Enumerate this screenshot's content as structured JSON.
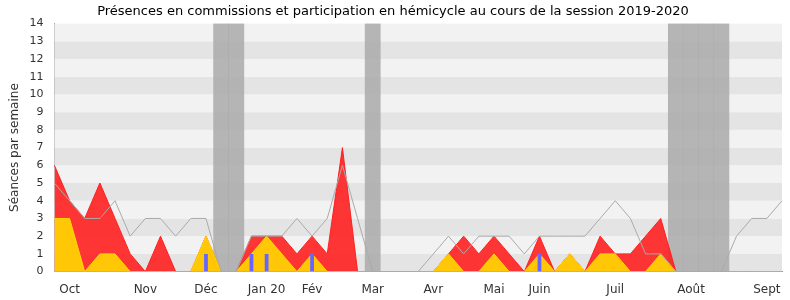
{
  "chart_data": {
    "type": "line",
    "title": "Présences en commissions et participation en hémicycle au cours de la session 2019-2020",
    "y_label": "Séances par semaine",
    "categories": [
      null,
      "Oct",
      null,
      null,
      null,
      null,
      "Nov",
      null,
      null,
      null,
      "Déc",
      null,
      null,
      null,
      "Jan 20",
      null,
      null,
      "Fév",
      null,
      null,
      null,
      "Mar",
      null,
      null,
      null,
      "Avr",
      null,
      null,
      null,
      "Mai",
      null,
      null,
      "Juin",
      null,
      null,
      null,
      null,
      "Juil",
      null,
      null,
      null,
      null,
      "Août",
      null,
      null,
      null,
      null,
      "Sept",
      null
    ],
    "series": [
      {
        "type": "bar",
        "color": "#aaaaaa",
        "values": [
          0,
          0,
          0,
          0,
          0,
          0,
          0,
          0,
          0,
          0,
          0,
          14,
          14,
          0,
          0,
          0,
          0,
          0,
          0,
          0,
          0,
          14,
          0,
          0,
          0,
          0,
          0,
          0,
          0,
          0,
          0,
          0,
          0,
          0,
          0,
          0,
          0,
          0,
          0,
          0,
          0,
          14,
          14,
          14,
          14,
          0,
          0,
          0,
          0
        ]
      },
      {
        "type": "area",
        "color": "#ff2020",
        "values": [
          6,
          4,
          3,
          5,
          3,
          1,
          0,
          2,
          0,
          0,
          2,
          0,
          0,
          2,
          2,
          2,
          1,
          2,
          1,
          7,
          0,
          0,
          0,
          0,
          0,
          0,
          1,
          2,
          1,
          2,
          1,
          0,
          2,
          0,
          1,
          0,
          2,
          1,
          1,
          2,
          3,
          0,
          0,
          0,
          0,
          0,
          0,
          0,
          0
        ]
      },
      {
        "type": "area",
        "color": "#ffd700",
        "values": [
          3,
          3,
          0,
          1,
          1,
          0,
          0,
          0,
          0,
          0,
          2,
          0,
          0,
          1,
          2,
          1,
          0,
          1,
          0,
          0,
          0,
          0,
          0,
          0,
          0,
          0,
          1,
          0,
          0,
          1,
          0,
          0,
          1,
          0,
          1,
          0,
          1,
          1,
          0,
          0,
          1,
          0,
          0,
          0,
          0,
          0,
          0,
          0,
          0
        ]
      },
      {
        "type": "line",
        "color": "#aaaaaa",
        "values": [
          5,
          4,
          3,
          3,
          4,
          2,
          3,
          3,
          2,
          3,
          3,
          0,
          0,
          2,
          2,
          2,
          3,
          2,
          3,
          6,
          3,
          0,
          0,
          0,
          0,
          1,
          2,
          1,
          2,
          2,
          2,
          1,
          2,
          2,
          2,
          2,
          3,
          4,
          3,
          1,
          1,
          0,
          0,
          0,
          0,
          2,
          3,
          3,
          4
        ]
      },
      {
        "type": "bar",
        "color": "#6666ff",
        "values": [
          0,
          0,
          0,
          0,
          0,
          0,
          0,
          0,
          0,
          0,
          1,
          0,
          0,
          1,
          1,
          0,
          0,
          1,
          0,
          0,
          0,
          0,
          0,
          0,
          0,
          0,
          0,
          0,
          0,
          0,
          0,
          0,
          1,
          0,
          0,
          0,
          0,
          0,
          0,
          0,
          0,
          0,
          0,
          0,
          0,
          0,
          0,
          0,
          0
        ]
      }
    ],
    "ylim": [
      0,
      14
    ],
    "yticks": [
      0,
      1,
      2,
      3,
      4,
      5,
      6,
      7,
      8,
      9,
      10,
      11,
      12,
      13,
      14
    ],
    "grid": true
  }
}
